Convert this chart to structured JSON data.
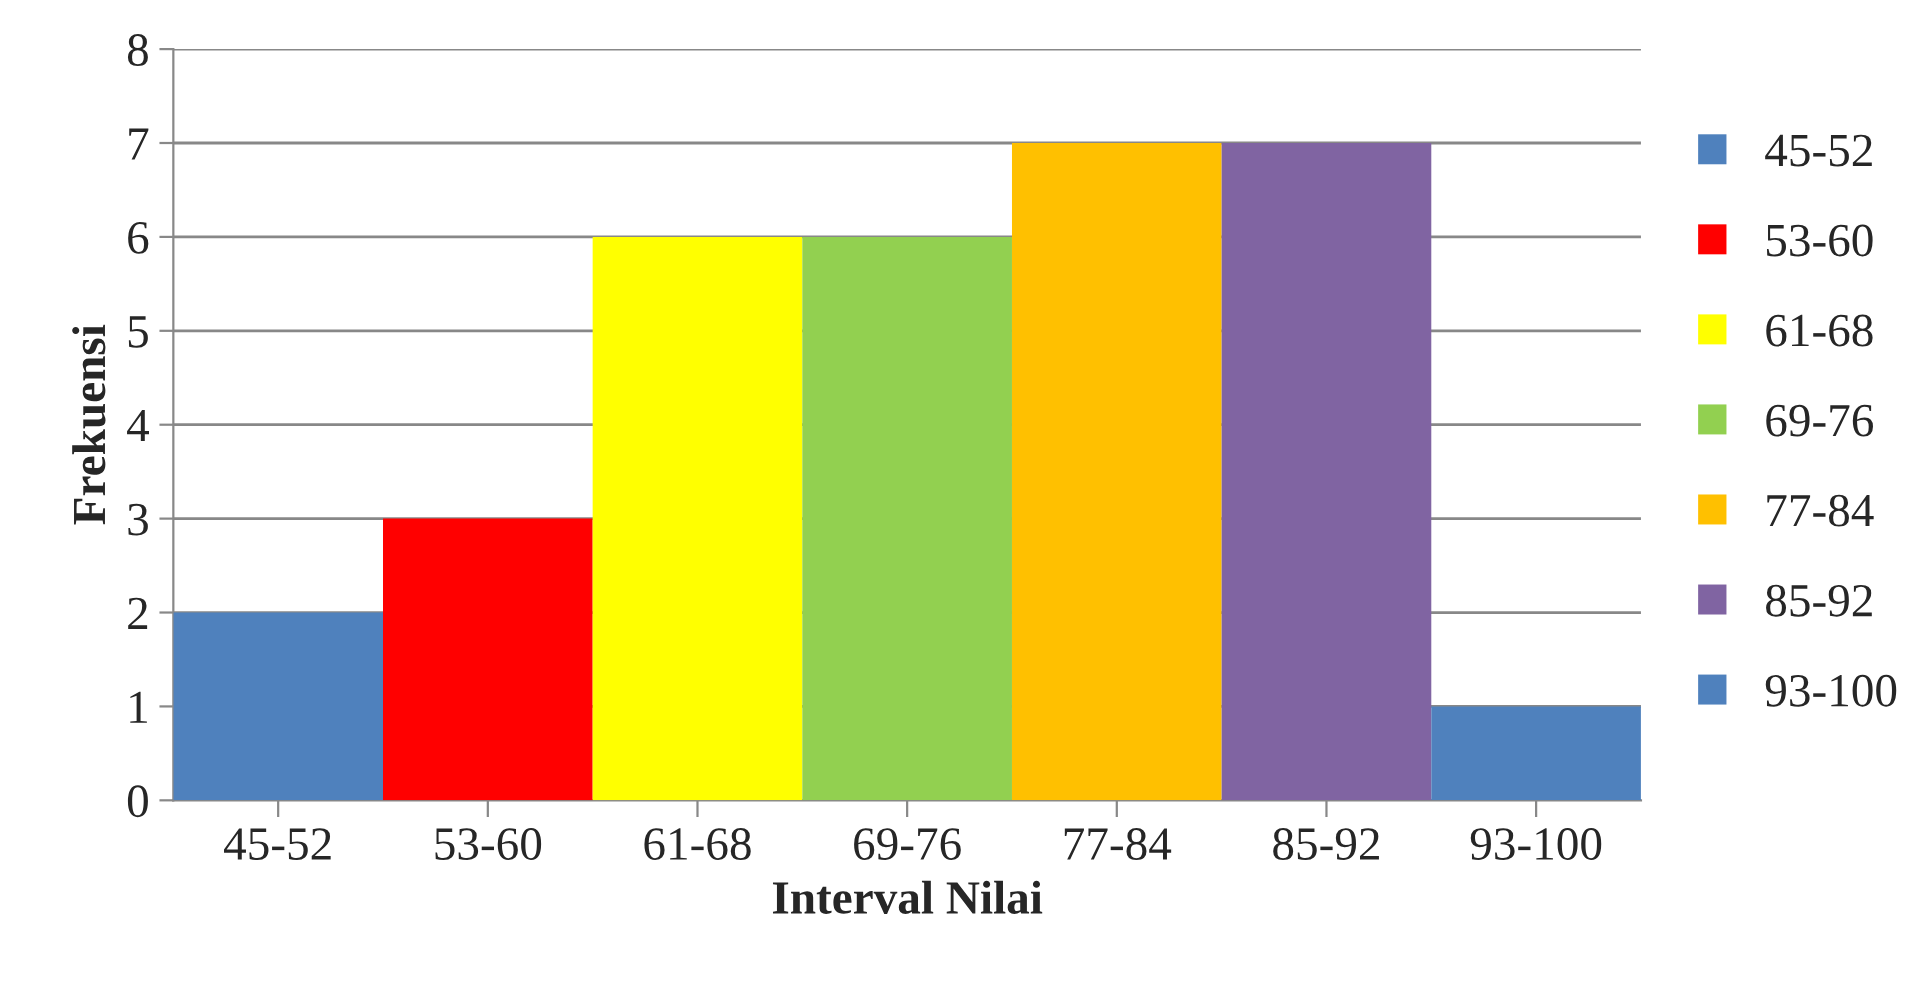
{
  "chart_data": {
    "type": "bar",
    "xlabel": "Interval Nilai",
    "ylabel": "Frekuensi",
    "categories": [
      "45-52",
      "53-60",
      "61-68",
      "69-76",
      "77-84",
      "85-92",
      "93-100"
    ],
    "series": [
      {
        "name": "45-52",
        "color": "#4f81bd",
        "values": [
          2,
          null,
          null,
          null,
          null,
          null,
          null
        ]
      },
      {
        "name": "53-60",
        "color": "#ff0000",
        "values": [
          null,
          3,
          null,
          null,
          null,
          null,
          null
        ]
      },
      {
        "name": "61-68",
        "color": "#ffff00",
        "values": [
          null,
          null,
          6,
          null,
          null,
          null,
          null
        ]
      },
      {
        "name": "69-76",
        "color": "#92d050",
        "values": [
          null,
          null,
          null,
          6,
          null,
          null,
          null
        ]
      },
      {
        "name": "77-84",
        "color": "#ffc000",
        "values": [
          null,
          null,
          null,
          null,
          7,
          null,
          null
        ]
      },
      {
        "name": "85-92",
        "color": "#8064a2",
        "values": [
          null,
          null,
          null,
          null,
          null,
          7,
          null
        ]
      },
      {
        "name": "93-100",
        "color": "#4f81bd",
        "values": [
          null,
          null,
          null,
          null,
          null,
          null,
          1
        ]
      }
    ],
    "ylim": [
      0,
      8
    ],
    "yticks": [
      0,
      1,
      2,
      3,
      4,
      5,
      6,
      7,
      8
    ],
    "grid": "y",
    "legend": "right"
  }
}
